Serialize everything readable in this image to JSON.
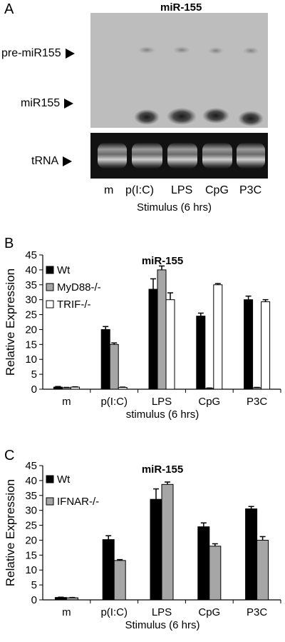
{
  "panelA": {
    "letter": "A",
    "title": "miR-155",
    "labels": {
      "pre": "pre-miR155",
      "mature": "miR155",
      "trna": "tRNA"
    },
    "lanes": [
      "m",
      "p(I:C)",
      "LPS",
      "CpG",
      "P3C"
    ],
    "xlabel": "Stimulus (6 hrs)"
  },
  "chart_data": [
    {
      "panel": "B",
      "type": "bar",
      "title": "miR-155",
      "ylabel": "Relative Expression",
      "xlabel": "stimulus (6 hrs)",
      "ylim": [
        0,
        45
      ],
      "yticks": [
        0,
        5,
        10,
        15,
        20,
        25,
        30,
        35,
        40,
        45
      ],
      "categories": [
        "m",
        "p(I:C)",
        "LPS",
        "CpG",
        "P3C"
      ],
      "series": [
        {
          "name": "Wt",
          "values": [
            0.7,
            20,
            33.5,
            24.5,
            30
          ],
          "errors": [
            0.2,
            1.0,
            3.5,
            1.0,
            1.2
          ],
          "color": "#000000"
        },
        {
          "name": "MyD88-/-",
          "values": [
            0.5,
            15,
            40,
            0.3,
            0.5
          ],
          "errors": [
            0.1,
            0.5,
            1.3,
            0.1,
            0.1
          ],
          "color": "#a6a6a6"
        },
        {
          "name": "TRIF-/-",
          "values": [
            0.7,
            0.6,
            30,
            35,
            29.3
          ],
          "errors": [
            0.1,
            0.1,
            2.3,
            0.4,
            0.7
          ],
          "color": "#ffffff"
        }
      ],
      "legend": "top-left"
    },
    {
      "panel": "C",
      "type": "bar",
      "title": "miR-155",
      "ylabel": "Relative Expression",
      "xlabel": "Stimulus (6 hrs)",
      "ylim": [
        0,
        45
      ],
      "yticks": [
        0,
        5,
        10,
        15,
        20,
        25,
        30,
        35,
        40,
        45
      ],
      "categories": [
        "m",
        "p(I:C)",
        "LPS",
        "CpG",
        "P3C"
      ],
      "series": [
        {
          "name": "Wt",
          "values": [
            0.8,
            20.2,
            33.7,
            24.5,
            30.5
          ],
          "errors": [
            0.1,
            1.3,
            3.5,
            1.3,
            0.8
          ],
          "color": "#000000"
        },
        {
          "name": "IFNAR-/-",
          "values": [
            0.7,
            13.2,
            38.7,
            18,
            20
          ],
          "errors": [
            0.1,
            0.3,
            0.8,
            0.8,
            1.2
          ],
          "color": "#a6a6a6"
        }
      ],
      "legend": "top-left"
    }
  ],
  "panelB": {
    "letter": "B"
  },
  "panelC": {
    "letter": "C"
  }
}
